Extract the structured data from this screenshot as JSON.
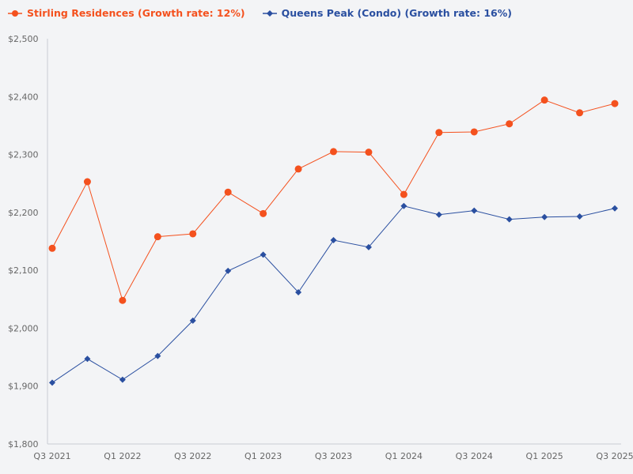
{
  "chart_data": {
    "type": "line",
    "title": "",
    "xlabel": "",
    "ylabel": "",
    "x": [
      "Q3 2021",
      "Q4 2021",
      "Q1 2022",
      "Q2 2022",
      "Q3 2022",
      "Q4 2022",
      "Q1 2023",
      "Q2 2023",
      "Q3 2023",
      "Q4 2023",
      "Q1 2024",
      "Q2 2024",
      "Q3 2024",
      "Q4 2024",
      "Q1 2025",
      "Q2 2025",
      "Q3 2025"
    ],
    "x_tick_labels": [
      "Q3 2021",
      "Q1 2022",
      "Q3 2022",
      "Q1 2023",
      "Q3 2023",
      "Q1 2024",
      "Q3 2024",
      "Q1 2025",
      "Q3 2025"
    ],
    "ylim": [
      1800,
      2500
    ],
    "y_ticks": [
      1800,
      1900,
      2000,
      2100,
      2200,
      2300,
      2400,
      2500
    ],
    "y_tick_labels": [
      "$1,800",
      "$1,900",
      "$2,000",
      "$2,100",
      "$2,200",
      "$2,300",
      "$2,400",
      "$2,500"
    ],
    "grid": false,
    "legend_position": "top-left",
    "series": [
      {
        "name": "Stirling Residences (Growth rate: 12%)",
        "color": "#f4511e",
        "marker": "circle",
        "values": [
          2138,
          2253,
          2048,
          2158,
          2163,
          2235,
          2198,
          2275,
          2305,
          2304,
          2231,
          2338,
          2339,
          2353,
          2394,
          2372,
          2388
        ]
      },
      {
        "name": "Queens Peak (Condo) (Growth rate: 16%)",
        "color": "#2a4fa0",
        "marker": "diamond",
        "values": [
          1906,
          1947,
          1911,
          1952,
          2013,
          2099,
          2127,
          2062,
          2152,
          2140,
          2211,
          2196,
          2203,
          2188,
          2192,
          2193,
          2207
        ]
      }
    ]
  }
}
